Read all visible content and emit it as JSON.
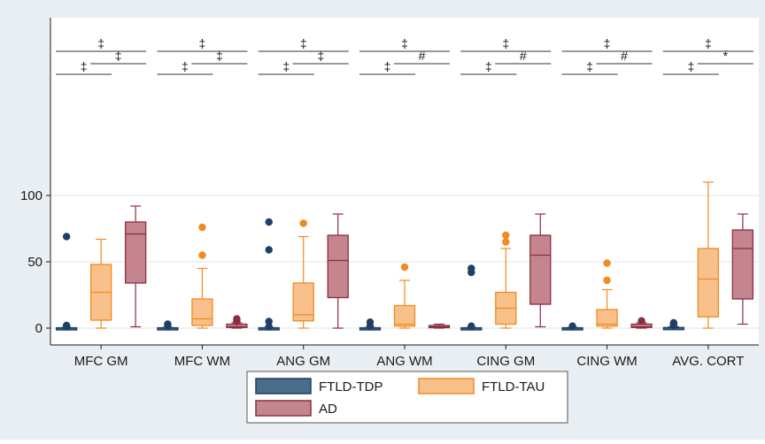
{
  "colors": {
    "background": "#e9eef2",
    "plot_bg": "#ffffff",
    "tdp_fill": "#4a6d8c",
    "tdp_stroke": "#1e3f66",
    "tau_fill": "#f8c08a",
    "tau_stroke": "#f28a1e",
    "ad_fill": "#c4858f",
    "ad_stroke": "#8b2e3f",
    "grid": "#dfe3e6"
  },
  "chart_data": {
    "type": "box",
    "title": "",
    "xlabel": "",
    "ylabel": "",
    "ylim": [
      0,
      115
    ],
    "yticks": [
      0,
      50,
      100
    ],
    "grid": true,
    "legend_position": "bottom",
    "categories": [
      "MFC GM",
      "MFC WM",
      "ANG GM",
      "ANG WM",
      "CING GM",
      "CING WM",
      "AVG. CORT"
    ],
    "series": [
      {
        "name": "FTLD-TDP",
        "boxes": [
          {
            "min": 0,
            "q1": 0,
            "median": 0,
            "q3": 0.3,
            "max": 0.5,
            "outliers": [
              1,
              2,
              69
            ]
          },
          {
            "min": 0,
            "q1": 0,
            "median": 0,
            "q3": 0.3,
            "max": 0.5,
            "outliers": [
              1.5,
              3
            ]
          },
          {
            "min": 0,
            "q1": 0,
            "median": 0,
            "q3": 0.3,
            "max": 0.5,
            "outliers": [
              1,
              5,
              59,
              80
            ]
          },
          {
            "min": 0,
            "q1": 0,
            "median": 0,
            "q3": 0.3,
            "max": 0.5,
            "outliers": [
              1.5,
              4.5
            ]
          },
          {
            "min": 0,
            "q1": 0,
            "median": 0,
            "q3": 0.3,
            "max": 0.5,
            "outliers": [
              1.5,
              42,
              45
            ]
          },
          {
            "min": 0,
            "q1": 0,
            "median": 0,
            "q3": 0.3,
            "max": 0.5,
            "outliers": [
              1.5
            ]
          },
          {
            "min": 0,
            "q1": 0,
            "median": 0.2,
            "q3": 0.5,
            "max": 1,
            "outliers": [
              2,
              3,
              4
            ]
          }
        ]
      },
      {
        "name": "FTLD-TAU",
        "boxes": [
          {
            "min": 0,
            "q1": 6,
            "median": 27,
            "q3": 48,
            "max": 67,
            "outliers": []
          },
          {
            "min": 0,
            "q1": 2,
            "median": 7,
            "q3": 22,
            "max": 45,
            "outliers": [
              55,
              76
            ]
          },
          {
            "min": 0,
            "q1": 5.5,
            "median": 10,
            "q3": 34,
            "max": 69,
            "outliers": [
              79
            ]
          },
          {
            "min": 0,
            "q1": 1.5,
            "median": 3,
            "q3": 17,
            "max": 36,
            "outliers": [
              46
            ]
          },
          {
            "min": 0,
            "q1": 3,
            "median": 15,
            "q3": 27,
            "max": 60,
            "outliers": [
              65,
              70
            ]
          },
          {
            "min": 0,
            "q1": 1.5,
            "median": 3,
            "q3": 14,
            "max": 29,
            "outliers": [
              36,
              49
            ]
          },
          {
            "min": 0,
            "q1": 8.5,
            "median": 37,
            "q3": 60,
            "max": 110,
            "outliers": []
          }
        ]
      },
      {
        "name": "AD",
        "boxes": [
          {
            "min": 1,
            "q1": 34,
            "median": 71,
            "q3": 80,
            "max": 92,
            "outliers": []
          },
          {
            "min": 0,
            "q1": 0.5,
            "median": 1,
            "q3": 3,
            "max": 4,
            "outliers": [
              5,
              6,
              7
            ]
          },
          {
            "min": 0,
            "q1": 23,
            "median": 51,
            "q3": 70,
            "max": 86,
            "outliers": []
          },
          {
            "min": 0,
            "q1": 0.5,
            "median": 1,
            "q3": 2,
            "max": 3,
            "outliers": []
          },
          {
            "min": 1,
            "q1": 18,
            "median": 55,
            "q3": 70,
            "max": 86,
            "outliers": []
          },
          {
            "min": 0,
            "q1": 0.5,
            "median": 1,
            "q3": 3,
            "max": 4,
            "outliers": [
              5.5
            ]
          },
          {
            "min": 3,
            "q1": 22,
            "median": 60,
            "q3": 74,
            "max": 86,
            "outliers": []
          }
        ]
      }
    ],
    "significance": [
      [
        {
          "from": 0,
          "to": 2,
          "symbol": "‡"
        },
        {
          "from": 0,
          "to": 1,
          "symbol": "‡"
        },
        {
          "from": 1,
          "to": 2,
          "symbol": "‡"
        }
      ],
      [
        {
          "from": 0,
          "to": 2,
          "symbol": "‡"
        },
        {
          "from": 0,
          "to": 1,
          "symbol": "‡"
        },
        {
          "from": 1,
          "to": 2,
          "symbol": "‡"
        }
      ],
      [
        {
          "from": 0,
          "to": 2,
          "symbol": "‡"
        },
        {
          "from": 0,
          "to": 1,
          "symbol": "‡"
        },
        {
          "from": 1,
          "to": 2,
          "symbol": "‡"
        }
      ],
      [
        {
          "from": 0,
          "to": 2,
          "symbol": "‡"
        },
        {
          "from": 0,
          "to": 1,
          "symbol": "‡"
        },
        {
          "from": 1,
          "to": 2,
          "symbol": "#"
        }
      ],
      [
        {
          "from": 0,
          "to": 2,
          "symbol": "‡"
        },
        {
          "from": 0,
          "to": 1,
          "symbol": "‡"
        },
        {
          "from": 1,
          "to": 2,
          "symbol": "#"
        }
      ],
      [
        {
          "from": 0,
          "to": 2,
          "symbol": "‡"
        },
        {
          "from": 0,
          "to": 1,
          "symbol": "‡"
        },
        {
          "from": 1,
          "to": 2,
          "symbol": "#"
        }
      ],
      [
        {
          "from": 0,
          "to": 2,
          "symbol": "‡"
        },
        {
          "from": 0,
          "to": 1,
          "symbol": "‡"
        },
        {
          "from": 1,
          "to": 2,
          "symbol": "*"
        }
      ]
    ]
  }
}
